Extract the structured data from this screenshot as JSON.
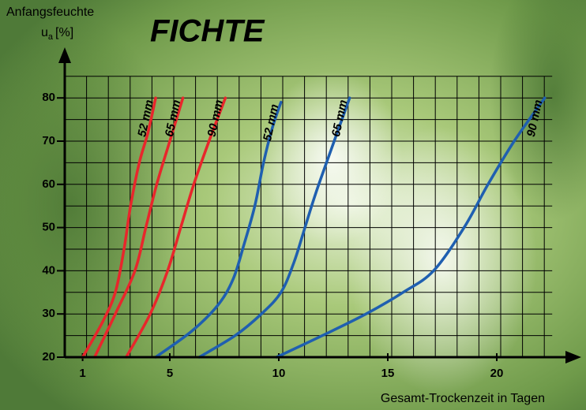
{
  "chart_data": {
    "type": "line",
    "title": "FICHTE",
    "ylabel": "Anfangsfeuchte",
    "ylabel_unit": {
      "symbol": "u",
      "subscript": "a",
      "unit": "[%]"
    },
    "xlabel": "Gesamt-Trockenzeit in Tagen",
    "xlim": [
      0,
      22.5
    ],
    "ylim": [
      20,
      90
    ],
    "xticks": [
      1,
      5,
      10,
      15,
      20
    ],
    "yticks": [
      20,
      30,
      40,
      50,
      60,
      70,
      80
    ],
    "xgrid": [
      0,
      1,
      2,
      3,
      4,
      5,
      6,
      7,
      8,
      9,
      10,
      11,
      12,
      13,
      14,
      15,
      16,
      17,
      18,
      19,
      20,
      21,
      22
    ],
    "ygrid": [
      20,
      25,
      30,
      35,
      40,
      45,
      50,
      55,
      60,
      65,
      70,
      75,
      80,
      85
    ],
    "grid": true,
    "series": [
      {
        "name": "52 mm",
        "color": "#e8262b",
        "x": [
          1,
          1.9,
          2.5,
          2.9,
          3.2,
          3.6,
          4.0,
          4.35
        ],
        "values": [
          20,
          28,
          35,
          45,
          55,
          65,
          72,
          80
        ]
      },
      {
        "name": "65 mm",
        "color": "#e8262b",
        "x": [
          1.55,
          2.5,
          3.4,
          3.9,
          4.4,
          5.0,
          5.6
        ],
        "values": [
          20,
          30,
          40,
          50,
          60,
          70,
          80
        ]
      },
      {
        "name": "90 mm",
        "color": "#e8262b",
        "x": [
          3.0,
          4.1,
          4.9,
          5.5,
          6.1,
          6.8,
          7.55
        ],
        "values": [
          20,
          30,
          40,
          50,
          60,
          70,
          80
        ]
      },
      {
        "name": "52 mm",
        "color": "#1f5fb0",
        "x": [
          4.35,
          6.0,
          7.2,
          7.9,
          8.4,
          8.9,
          9.3,
          9.7,
          10.1
        ],
        "values": [
          20,
          26,
          32,
          38,
          46,
          55,
          65,
          73,
          79
        ]
      },
      {
        "name": "65 mm",
        "color": "#1f5fb0",
        "x": [
          6.35,
          8.0,
          9.2,
          10.1,
          10.7,
          11.2,
          11.7,
          12.4,
          13.25
        ],
        "values": [
          20,
          25,
          30,
          35,
          42,
          50,
          58,
          68,
          80
        ]
      },
      {
        "name": "90 mm",
        "color": "#1f5fb0",
        "x": [
          9.9,
          12.0,
          14.0,
          15.7,
          17.1,
          18.5,
          19.6,
          20.8,
          22.2
        ],
        "values": [
          20,
          25,
          30,
          35,
          40,
          50,
          60,
          70,
          80
        ]
      }
    ]
  }
}
